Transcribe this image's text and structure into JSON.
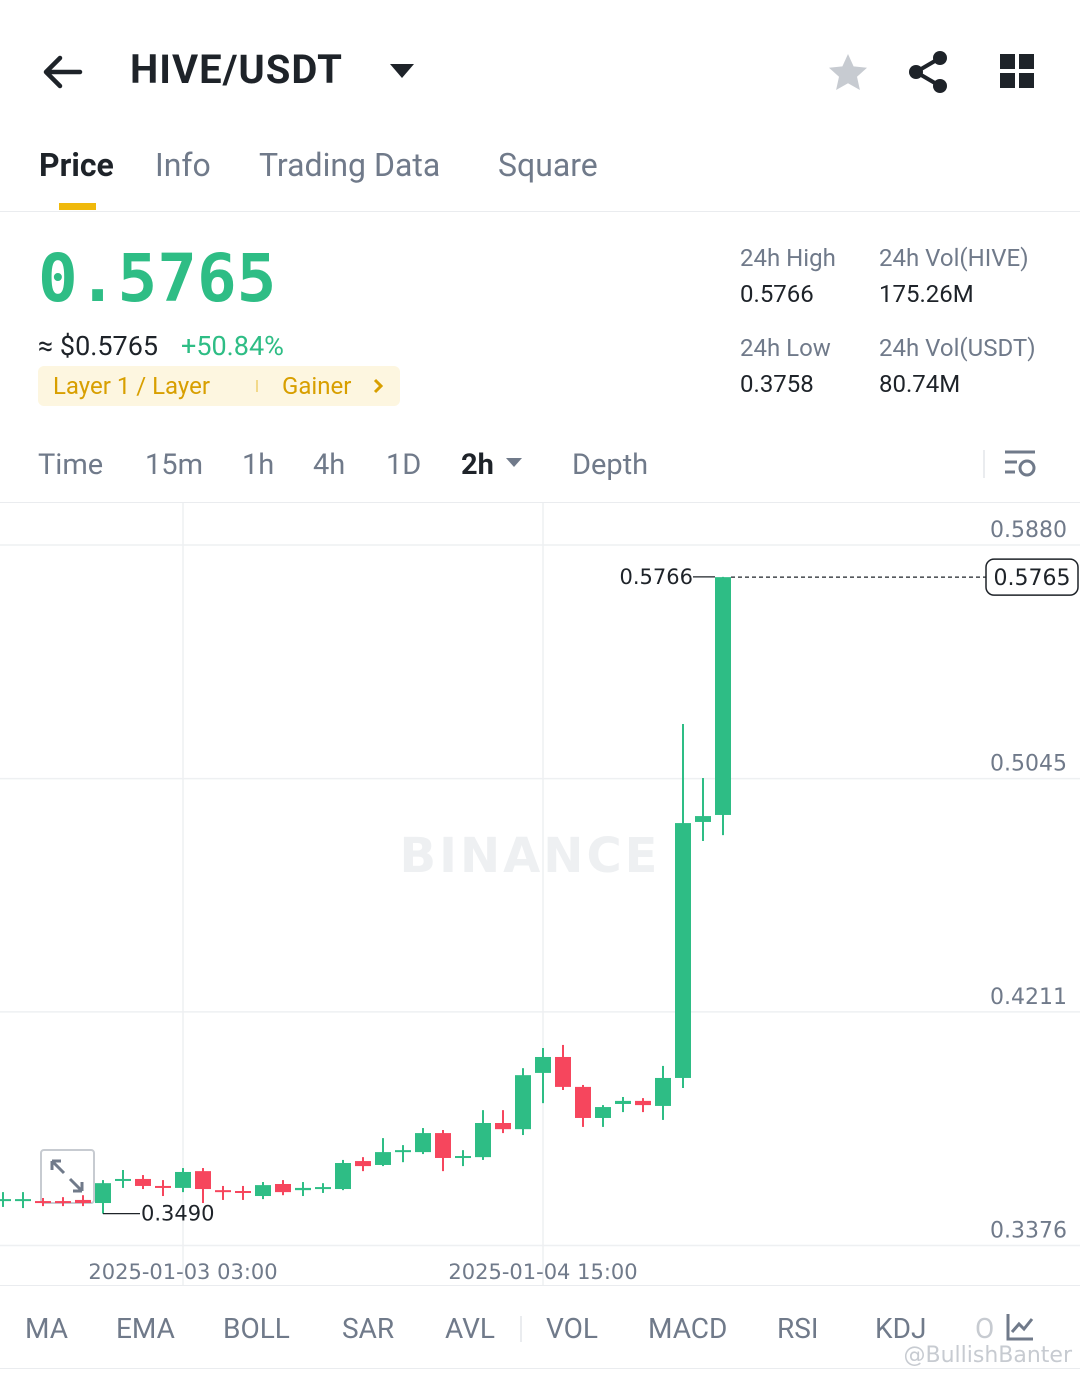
{
  "header": {
    "pair": "HIVE/USDT"
  },
  "tabs": [
    "Price",
    "Info",
    "Trading Data",
    "Square"
  ],
  "price": {
    "last": "0.5765",
    "approx": "≈ $0.5765",
    "change": "+50.84%",
    "tags": [
      "Layer 1 / Layer",
      "Gainer"
    ]
  },
  "stats": [
    {
      "label": "24h High",
      "value": "0.5766"
    },
    {
      "label": "24h Vol(HIVE)",
      "value": "175.26M"
    },
    {
      "label": "24h Low",
      "value": "0.3758"
    },
    {
      "label": "24h Vol(USDT)",
      "value": "80.74M"
    }
  ],
  "intervals": [
    "Time",
    "15m",
    "1h",
    "4h",
    "1D",
    "2h",
    "Depth"
  ],
  "indicators": [
    "MA",
    "EMA",
    "BOLL",
    "SAR",
    "AVL",
    "VOL",
    "MACD",
    "RSI",
    "KDJ",
    "O"
  ],
  "watermark": "BINANCE",
  "credit": "@BullishBanter",
  "chart_data": {
    "type": "candlestick",
    "categories": [
      null,
      null,
      null,
      null,
      null,
      null,
      null,
      null,
      null,
      "2025-01-03 03:00",
      null,
      null,
      null,
      null,
      null,
      null,
      null,
      null,
      null,
      null,
      null,
      null,
      null,
      null,
      null,
      null,
      null,
      "2025-01-04 15:00",
      null,
      null,
      null,
      null,
      null,
      null,
      null,
      null,
      null
    ],
    "open": [
      0.3539,
      0.3535,
      0.3535,
      0.3535,
      0.3539,
      0.3528,
      0.3607,
      0.3614,
      0.3589,
      0.3582,
      0.3642,
      0.3574,
      0.3571,
      0.3553,
      0.3596,
      0.3574,
      0.3578,
      0.3578,
      0.3678,
      0.3664,
      0.371,
      0.371,
      0.3778,
      0.3689,
      0.3692,
      0.3814,
      0.3792,
      0.3993,
      0.405,
      0.3943,
      0.3832,
      0.3882,
      0.3893,
      0.3875,
      0.3975,
      0.489,
      0.4915
    ],
    "high": [
      0.3567,
      0.3567,
      0.3546,
      0.3549,
      0.3556,
      0.361,
      0.3646,
      0.3628,
      0.361,
      0.3653,
      0.3653,
      0.3589,
      0.3589,
      0.3603,
      0.361,
      0.3603,
      0.3599,
      0.3682,
      0.3692,
      0.376,
      0.3735,
      0.3796,
      0.3789,
      0.3717,
      0.386,
      0.386,
      0.401,
      0.4082,
      0.4093,
      0.395,
      0.3878,
      0.3907,
      0.3903,
      0.4018,
      0.524,
      0.5047,
      0.5766
    ],
    "low": [
      0.3514,
      0.351,
      0.3517,
      0.3517,
      0.3517,
      0.349,
      0.3582,
      0.3578,
      0.3553,
      0.3567,
      0.3528,
      0.3539,
      0.3539,
      0.3542,
      0.3556,
      0.3553,
      0.3564,
      0.3574,
      0.3642,
      0.366,
      0.3674,
      0.3703,
      0.3642,
      0.366,
      0.3682,
      0.3778,
      0.3771,
      0.3885,
      0.3932,
      0.38,
      0.38,
      0.3853,
      0.3853,
      0.3825,
      0.3939,
      0.4822,
      0.4843
    ],
    "close": [
      0.3542,
      0.3542,
      0.3528,
      0.3528,
      0.3528,
      0.3599,
      0.3614,
      0.3589,
      0.3582,
      0.3639,
      0.3578,
      0.3567,
      0.3564,
      0.3592,
      0.3567,
      0.3582,
      0.3585,
      0.3671,
      0.366,
      0.371,
      0.3717,
      0.3778,
      0.3689,
      0.3696,
      0.3814,
      0.3792,
      0.3985,
      0.405,
      0.3943,
      0.3832,
      0.3871,
      0.3893,
      0.3878,
      0.3975,
      0.4886,
      0.4911,
      0.5765
    ],
    "up_color": "#2ebd85",
    "down_color": "#f6465d",
    "ylim": [
      0.3235,
      0.603
    ],
    "yticks": [
      {
        "value": 0.588,
        "label": "0.5880"
      },
      0.5045,
      0.4211,
      0.3376
    ],
    "grid": true,
    "max_label": "0.5766",
    "min_label": "0.3490",
    "last_label": "0.5765"
  }
}
